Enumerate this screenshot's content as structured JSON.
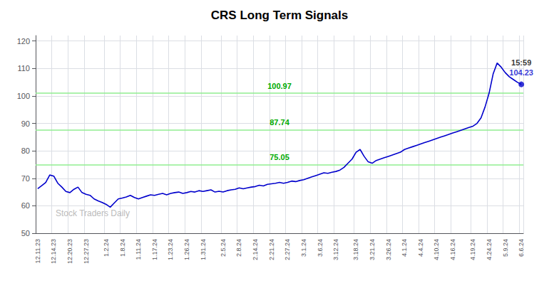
{
  "chart_data": {
    "type": "line",
    "title": "CRS Long Term Signals",
    "color": "#0000cc",
    "grid": true,
    "ylim": [
      50,
      122
    ],
    "yticks": [
      50,
      60,
      70,
      80,
      90,
      100,
      110,
      120
    ],
    "categories": [
      "12.11.23",
      null,
      null,
      null,
      "12.14.23",
      null,
      null,
      null,
      "12.20.23",
      null,
      null,
      null,
      "12.27.23",
      null,
      null,
      null,
      null,
      "1.2.24",
      null,
      null,
      null,
      "1.8.24",
      null,
      null,
      null,
      "1.11.24",
      null,
      null,
      null,
      "1.17.24",
      null,
      null,
      null,
      "1.23.24",
      null,
      null,
      null,
      "1.26.24",
      null,
      null,
      null,
      "1.31.24",
      null,
      null,
      null,
      null,
      "2.5.24",
      null,
      null,
      null,
      "2.8.24",
      null,
      null,
      null,
      "2.14.24",
      null,
      null,
      null,
      "2.21.24",
      null,
      null,
      null,
      "2.27.24",
      null,
      null,
      null,
      "3.1.24",
      null,
      null,
      null,
      "3.6.24",
      null,
      null,
      null,
      "3.12.24",
      null,
      null,
      null,
      null,
      "3.18.24",
      null,
      null,
      null,
      "3.21.24",
      null,
      null,
      null,
      "3.26.24",
      null,
      null,
      null,
      "4.1.24",
      null,
      null,
      null,
      "4.4.24",
      null,
      null,
      null,
      "4.10.24",
      null,
      null,
      null,
      "4.16.24",
      null,
      null,
      null,
      null,
      "4.19.24",
      null,
      null,
      null,
      "4.24.24",
      null,
      null,
      null,
      "5.9.24",
      null,
      null,
      null,
      "6.6.24"
    ],
    "values": [
      66.2,
      67.3,
      68.5,
      71.2,
      70.8,
      68.2,
      66.8,
      65.2,
      64.8,
      66.0,
      66.8,
      64.8,
      64.2,
      63.8,
      62.5,
      61.8,
      61.2,
      60.5,
      59.5,
      61.0,
      62.5,
      62.8,
      63.2,
      63.8,
      63.0,
      62.5,
      63.0,
      63.5,
      64.0,
      63.8,
      64.2,
      64.5,
      64.0,
      64.5,
      64.8,
      65.0,
      64.5,
      64.8,
      65.2,
      65.0,
      65.5,
      65.2,
      65.5,
      65.8,
      65.0,
      65.3,
      65.0,
      65.5,
      65.8,
      66.0,
      66.5,
      66.2,
      66.5,
      66.8,
      67.0,
      67.5,
      67.2,
      67.8,
      68.0,
      68.2,
      68.5,
      68.2,
      68.5,
      69.0,
      68.8,
      69.2,
      69.5,
      70.0,
      70.5,
      71.0,
      71.5,
      72.0,
      71.8,
      72.2,
      72.5,
      73.0,
      74.0,
      75.5,
      77.0,
      79.5,
      80.5,
      78.0,
      76.0,
      75.5,
      76.5,
      77.0,
      77.5,
      78.0,
      78.5,
      79.0,
      79.5,
      80.5,
      81.0,
      81.5,
      82.0,
      82.5,
      83.0,
      83.5,
      84.0,
      84.5,
      85.0,
      85.5,
      86.0,
      86.5,
      87.0,
      87.5,
      88.0,
      88.5,
      89.0,
      90.0,
      92.0,
      96.0,
      101.0,
      108.0,
      112.0,
      110.5,
      108.5,
      107.0,
      106.0,
      105.0,
      104.23
    ],
    "hlines": [
      {
        "y": 75.05,
        "label": "75.05",
        "color": "#90ee90",
        "label_color": "#00aa00"
      },
      {
        "y": 87.74,
        "label": "87.74",
        "color": "#90ee90",
        "label_color": "#00aa00"
      },
      {
        "y": 100.97,
        "label": "100.97",
        "color": "#90ee90",
        "label_color": "#00aa00"
      }
    ],
    "watermark": {
      "text": "Stock Traders Daily",
      "color": "#bbbbbb"
    },
    "end_annotation": {
      "labels": [
        "15:59",
        "104.23"
      ],
      "colors": [
        "#000000",
        "#0000cc"
      ],
      "marker_color": "#0000cc"
    }
  }
}
